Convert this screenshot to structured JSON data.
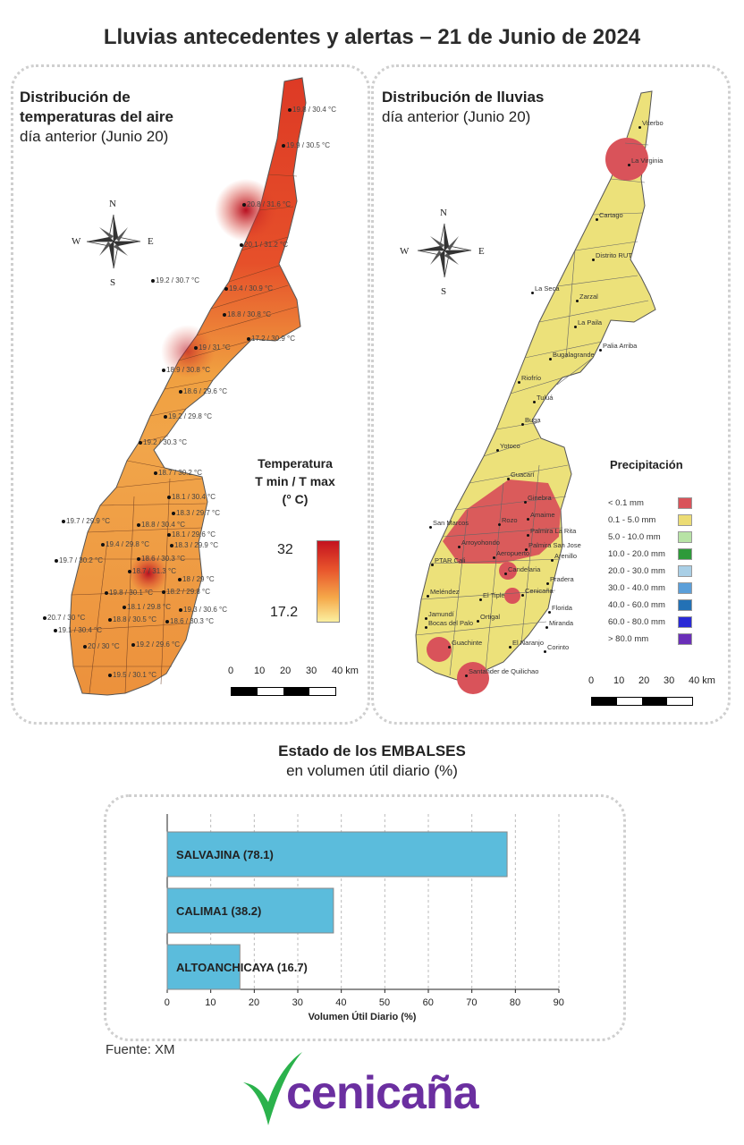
{
  "page": {
    "title": "Lluvias antecedentes y alertas – 21 de Junio de 2024",
    "source": "Fuente: XM",
    "logo_text": "cenicaña"
  },
  "temp_map": {
    "title_line1": "Distribución de",
    "title_line2": "temperaturas del aire",
    "subtitle": "día anterior (Junio 20)",
    "legend_title_1": "Temperatura",
    "legend_title_2": "T min / T max",
    "legend_title_3": "(° C)",
    "legend_max": "32",
    "legend_min": "17.2",
    "scale_labels": [
      "0",
      "10",
      "20",
      "30",
      "40 km"
    ],
    "compass": {
      "n": "N",
      "s": "S",
      "e": "E",
      "w": "W"
    },
    "stations": [
      "19.8 / 30.4 °C",
      "19.9 / 30.5 °C",
      "20.8 / 31.6 °C",
      "20.1 / 31.2 °C",
      "19.2 / 30.7 °C",
      "19.4 / 30.9 °C",
      "18.8 / 30.8 °C",
      "17.2 / 30.9 °C",
      "19 / 31 °C",
      "18.9 / 30.8 °C",
      "18.6 / 29.6 °C",
      "19.2 / 29.8 °C",
      "19.2 / 30.3 °C",
      "18.7 / 30.2 °C",
      "18.1 / 30.4 °C",
      "18.3 / 29.7 °C",
      "19.7 / 29.9 °C",
      "18.8 / 30.4 °C",
      "18.1 / 29.6 °C",
      "19.4 / 29.8 °C",
      "18.3 / 29.9 °C",
      "19.7 / 30.2 °C",
      "18.6 / 30.3 °C",
      "18.7 / 31.3 °C",
      "18 / 29 °C",
      "19.8 / 30.1 °C",
      "18.2 / 29.8 °C",
      "18.1 / 29.8 °C",
      "19.3 / 30.6 °C",
      "20.7 / 30 °C",
      "18.8 / 30.5 °C",
      "19.1 / 30.4 °C",
      "18.6 / 30.3 °C",
      "20 / 30 °C",
      "19.2 / 29.6 °C",
      "19.5 / 30.1 °C"
    ]
  },
  "rain_map": {
    "title": "Distribución de lluvias",
    "subtitle": "día anterior (Junio 20)",
    "legend_title": "Precipitación",
    "scale_labels": [
      "0",
      "10",
      "20",
      "30",
      "40 km"
    ],
    "compass": {
      "n": "N",
      "s": "S",
      "e": "E",
      "w": "W"
    },
    "legend": [
      {
        "label": "< 0.1 mm",
        "color": "#d9535a"
      },
      {
        "label": "0.1 - 5.0 mm",
        "color": "#ecdc74"
      },
      {
        "label": "5.0 - 10.0 mm",
        "color": "#b7e3a5"
      },
      {
        "label": "10.0 - 20.0 mm",
        "color": "#2e9a3a"
      },
      {
        "label": "20.0 - 30.0 mm",
        "color": "#a9cfe6"
      },
      {
        "label": "30.0 - 40.0 mm",
        "color": "#5b9fd9"
      },
      {
        "label": "40.0 - 60.0 mm",
        "color": "#2371b5"
      },
      {
        "label": "60.0 - 80.0 mm",
        "color": "#2a2ad6"
      },
      {
        "label": "> 80.0 mm",
        "color": "#6a2fb8"
      }
    ],
    "places": [
      "Viterbo",
      "La Virginia",
      "Cartago",
      "Distrito RUT",
      "La Seca",
      "Zarzal",
      "La Paila",
      "Palia Arriba",
      "Bugalagrande",
      "Riofrío",
      "Tuluá",
      "Buga",
      "Yotoco",
      "Guacarí",
      "Ginebra",
      "San Marcos",
      "Rozo",
      "Amaime",
      "Palmira La Rita",
      "Arroyohondo",
      "Aeropuerto",
      "Palmira San Jose",
      "PTAR Cali",
      "Arenillo",
      "Candelaria",
      "Pradera",
      "Meléndez",
      "El Tiple",
      "Cenicaña",
      "Florida",
      "Jamundí",
      "Bocas del Palo",
      "Ortigal",
      "Miranda",
      "Guachinte",
      "El Naranjo",
      "Corinto",
      "Santander de Quilichao"
    ]
  },
  "embalses": {
    "title": "Estado de los EMBALSES",
    "subtitle": "en volumen útil diario (%)",
    "color": "#5bbcdc"
  },
  "chart_data": {
    "type": "bar",
    "orientation": "horizontal",
    "categories": [
      "SALVAJINA",
      "CALIMA1",
      "ALTOANCHICAYA"
    ],
    "bar_labels": [
      "SALVAJINA (78.1)",
      "CALIMA1 (38.2)",
      "ALTOANCHICAYA (16.7)"
    ],
    "values": [
      78.1,
      38.2,
      16.7
    ],
    "xlabel": "Volumen Útil Diario (%)",
    "xlim": [
      0,
      90
    ],
    "xticks": [
      "0",
      "10",
      "20",
      "30",
      "40",
      "50",
      "60",
      "70",
      "80",
      "90"
    ],
    "grid": true
  }
}
